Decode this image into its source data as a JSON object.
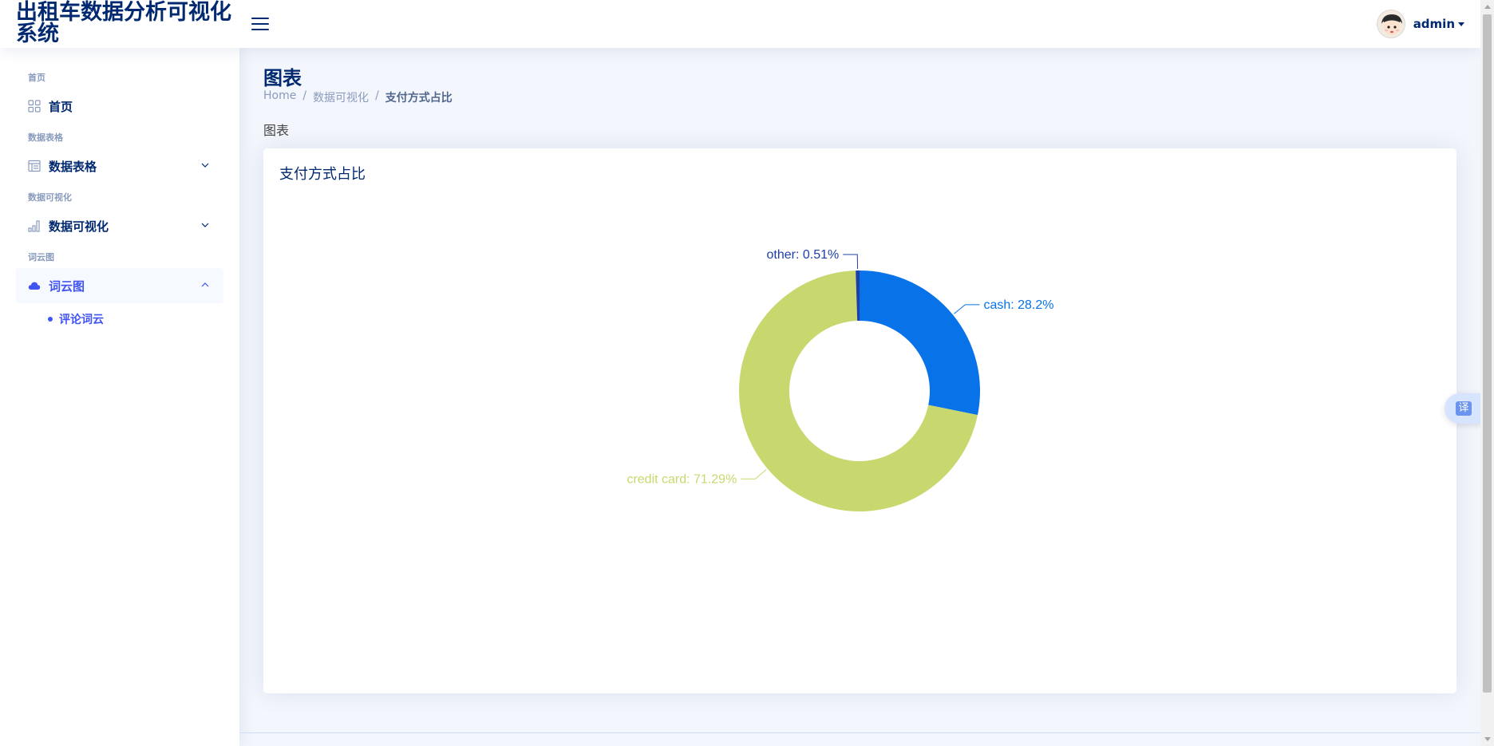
{
  "header": {
    "app_title": "出租车数据分析可视化系统",
    "user_name": "admin"
  },
  "sidebar": {
    "sections": [
      {
        "heading": "首页",
        "label": "首页",
        "icon": "grid-icon",
        "expandable": false
      },
      {
        "heading": "数据表格",
        "label": "数据表格",
        "icon": "table-icon",
        "expandable": true
      },
      {
        "heading": "数据可视化",
        "label": "数据可视化",
        "icon": "bar-chart-icon",
        "expandable": true
      },
      {
        "heading": "词云图",
        "label": "词云图",
        "icon": "cloud-icon",
        "expandable": true,
        "expanded": true,
        "active": true
      }
    ],
    "sub_items": [
      {
        "label": "评论词云"
      }
    ]
  },
  "main": {
    "page_title": "图表",
    "breadcrumb": [
      "Home",
      "数据可视化",
      "支付方式占比"
    ],
    "breadcrumb_separator": "/",
    "section_label": "图表",
    "card_title": "支付方式占比"
  },
  "translate_button": {
    "label": "译"
  },
  "colors": {
    "cash": "#0873e8",
    "credit_card": "#c8d86e",
    "other": "#1f3fa8",
    "accent": "#4154f1",
    "nav_text": "#012970"
  },
  "chart_data": {
    "type": "pie",
    "variant": "donut",
    "title": "支付方式占比",
    "slices": [
      {
        "label": "cash",
        "value": 28.2,
        "display": "cash: 28.2%"
      },
      {
        "label": "credit card",
        "value": 71.29,
        "display": "credit card: 71.29%"
      },
      {
        "label": "other",
        "value": 0.51,
        "display": "other: 0.51%"
      }
    ]
  }
}
